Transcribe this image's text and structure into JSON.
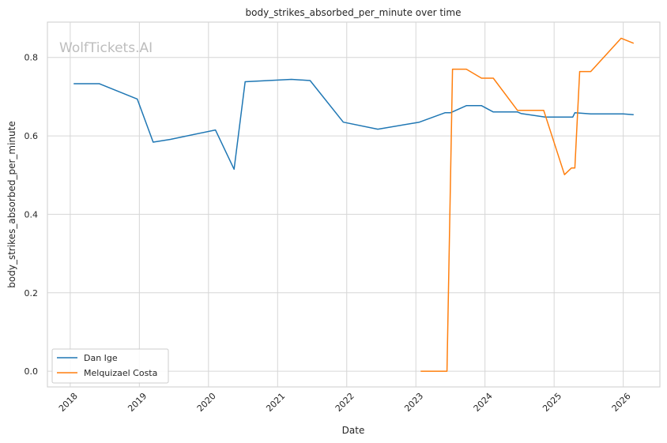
{
  "chart_data": {
    "type": "line",
    "title": "body_strikes_absorbed_per_minute over time",
    "xlabel": "Date",
    "ylabel": "body_strikes_absorbed_per_minute",
    "watermark": "WolfTickets.AI",
    "x_ticks": [
      "2018",
      "2019",
      "2020",
      "2021",
      "2022",
      "2023",
      "2024",
      "2025",
      "2026"
    ],
    "y_ticks": [
      "0.0",
      "0.2",
      "0.4",
      "0.6",
      "0.8"
    ],
    "xlim": [
      2017.67,
      2026.53
    ],
    "ylim": [
      -0.04,
      0.89
    ],
    "grid": true,
    "legend_position": "lower-left",
    "series": [
      {
        "name": "Dan Ige",
        "color": "#1f77b4",
        "points": [
          [
            2018.05,
            0.733
          ],
          [
            2018.42,
            0.733
          ],
          [
            2018.97,
            0.694
          ],
          [
            2019.2,
            0.584
          ],
          [
            2019.45,
            0.591
          ],
          [
            2020.1,
            0.615
          ],
          [
            2020.37,
            0.515
          ],
          [
            2020.53,
            0.738
          ],
          [
            2021.2,
            0.744
          ],
          [
            2021.47,
            0.741
          ],
          [
            2021.95,
            0.635
          ],
          [
            2022.45,
            0.617
          ],
          [
            2023.05,
            0.635
          ],
          [
            2023.42,
            0.659
          ],
          [
            2023.5,
            0.659
          ],
          [
            2023.73,
            0.677
          ],
          [
            2023.95,
            0.677
          ],
          [
            2024.12,
            0.661
          ],
          [
            2024.47,
            0.661
          ],
          [
            2024.52,
            0.657
          ],
          [
            2024.87,
            0.648
          ],
          [
            2025.27,
            0.648
          ],
          [
            2025.3,
            0.659
          ],
          [
            2025.53,
            0.656
          ],
          [
            2026.0,
            0.656
          ],
          [
            2026.15,
            0.654
          ]
        ]
      },
      {
        "name": "Melquizael Costa",
        "color": "#ff7f0e",
        "points": [
          [
            2023.07,
            0.0
          ],
          [
            2023.45,
            0.0
          ],
          [
            2023.53,
            0.77
          ],
          [
            2023.73,
            0.77
          ],
          [
            2023.95,
            0.747
          ],
          [
            2024.12,
            0.747
          ],
          [
            2024.47,
            0.665
          ],
          [
            2024.85,
            0.665
          ],
          [
            2025.15,
            0.501
          ],
          [
            2025.25,
            0.518
          ],
          [
            2025.3,
            0.518
          ],
          [
            2025.37,
            0.764
          ],
          [
            2025.53,
            0.764
          ],
          [
            2025.97,
            0.849
          ],
          [
            2026.15,
            0.836
          ]
        ]
      }
    ]
  }
}
